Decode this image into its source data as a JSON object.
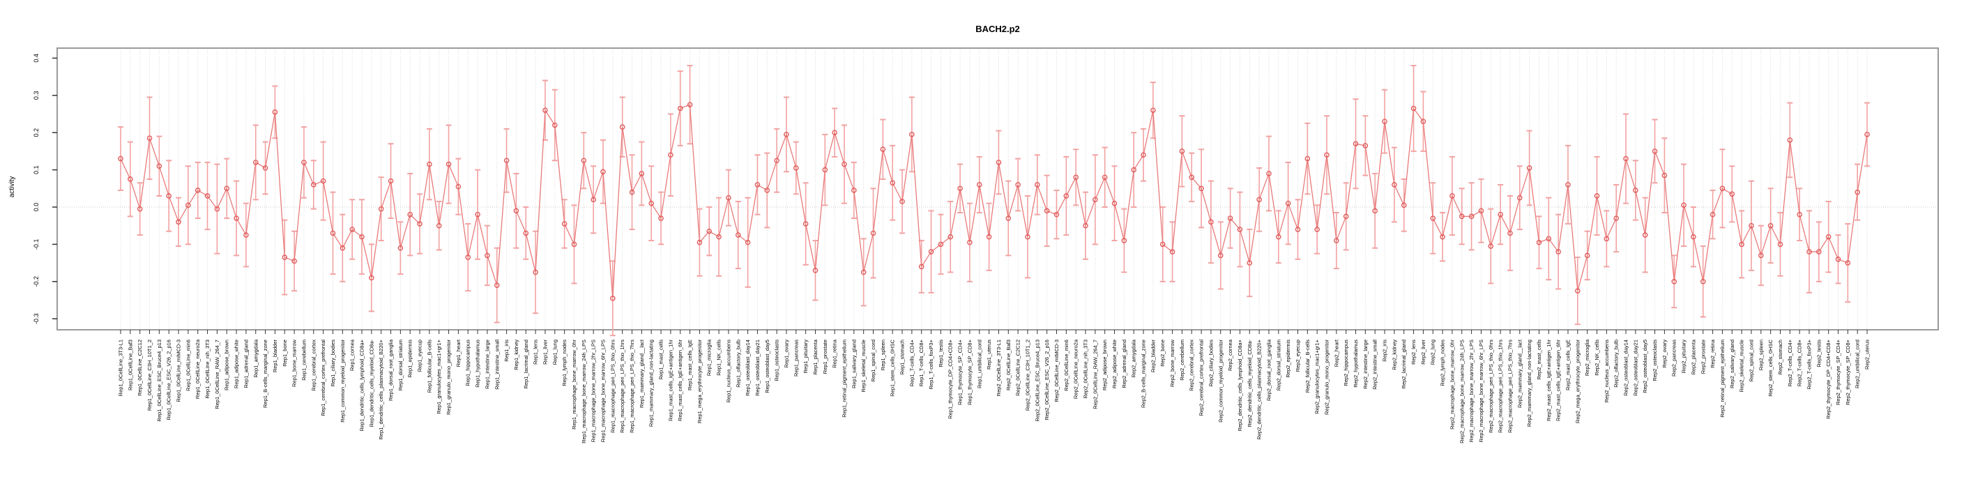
{
  "chart_data": {
    "type": "line",
    "title": "BACH2.p2",
    "ylabel": "activity",
    "xlabel": "",
    "ylim": [
      -0.32,
      0.43
    ],
    "yticks": [
      -0.3,
      -0.2,
      -0.1,
      0.0,
      0.1,
      0.2,
      0.3,
      0.4
    ],
    "grid": "vertical-dotted-per-category, dotted zero line",
    "legend": "none",
    "style": {
      "line_color": "#e87a7a",
      "point_color": "#e05c5c",
      "errorbar_color": "#f2a2a2",
      "grid_color": "#d8d8d8",
      "zero_line_color": "#c8c8c8",
      "box_color": "#9b9b9b",
      "text_color": "#000000",
      "background": "#ffffff",
      "point_style": "open-circle",
      "error_caps": true
    },
    "categories": [
      "Rep1_0CellLine_3T3-L1",
      "Rep1_0CellLine_Baf3",
      "Rep1_0CellLine_C2C12",
      "Rep1_0CellLine_C3H_10T1_2",
      "Rep1_0CellLine_ESC_Bruce4_p13",
      "Rep1_0CellLine_ESC_V26_2_p16",
      "Rep1_0CellLine_mIMCD-3",
      "Rep1_0CellLine_min6",
      "Rep1_0CellLine_neuro2a",
      "Rep1_0CellLine_nih_3T3",
      "Rep1_0CellLine_RAW_264_7",
      "Rep1_adipose_brown",
      "Rep1_adipose_white",
      "Rep1_adrenal_gland",
      "Rep1_amygdala",
      "Rep1_B-cells_marginal_zone",
      "Rep1_bladder",
      "Rep1_bone",
      "Rep1_bone_marrow",
      "Rep1_cerebellum",
      "Rep1_cerebral_cortex",
      "Rep1_cerebral_cortex_prefrontal",
      "Rep1_ciliary_bodies",
      "Rep1_common_myeloid_progenitor",
      "Rep1_cornea",
      "Rep1_dendritic_cells_lymphoid_CD8a+",
      "Rep1_dendritic_cells_myeloid_CD8a-",
      "Rep1_dendritic_cells_plasmacytoid_B220+",
      "Rep1_dorsal_root_ganglia",
      "Rep1_dorsal_striatum",
      "Rep1_epidermis",
      "Rep1_eyecup",
      "Rep1_follicular_B-cells",
      "Rep1_granulocytes_mac1+gr1+",
      "Rep1_granulo_mono_progenitor",
      "Rep1_heart",
      "Rep1_hippocampus",
      "Rep1_hypothalamus",
      "Rep1_intestine_large",
      "Rep1_intestine_small",
      "Rep1_iris",
      "Rep1_kidney",
      "Rep1_lacrimal_gland",
      "Rep1_lens",
      "Rep1_liver",
      "Rep1_lung",
      "Rep1_lymph_nodes",
      "Rep1_macrophage_bone_marrow_0hr",
      "Rep1_macrophage_bone_marrow_24h_LPS",
      "Rep1_macrophage_bone_marrow_2hr_LPS",
      "Rep1_macrophage_bone_marrow_6hr_LPS",
      "Rep1_macrophage_peri_LPS_thio_0hrs",
      "Rep1_macrophage_peri_LPS_thio_1hrs",
      "Rep1_macrophage_peri_LPS_thio_7hrs",
      "Rep1_mammary_gland__lact",
      "Rep1_mammary_gland_non-lactating",
      "Rep1_mast_cells",
      "Rep1_mast_cells_IgE+antigen_1hr",
      "Rep1_mast_cells_IgE+antigen_6hr",
      "Rep1_mast_cells_IgE",
      "Rep1_mega_erythrocyte_progenitor",
      "Rep1_microglia",
      "Rep1_NK_cells",
      "Rep1_nucleus_accumbens",
      "Rep1_olfactory_bulb",
      "Rep1_osteoblast_day14",
      "Rep1_osteoblast_day21",
      "Rep1_osteoblast_day5",
      "Rep1_osteoclasts",
      "Rep1_ovary",
      "Rep1_pancreas",
      "Rep1_pituitary",
      "Rep1_placenta",
      "Rep1_prostate",
      "Rep1_retina",
      "Rep1_retinal_pigment_epithelium",
      "Rep1_salivary_gland",
      "Rep1_skeletal_muscle",
      "Rep1_spinal_cord",
      "Rep1_spleen",
      "Rep1_stem_cells_0HSC",
      "Rep1_stomach",
      "Rep1_T-cells_CD4+",
      "Rep1_T-cells_CD8+",
      "Rep1_T-cells_foxP3+",
      "Rep1_testis",
      "Rep1_thymocyte_DP_CD4+CD8+",
      "Rep1_thymocyte_SP_CD4+",
      "Rep1_thymocyte_SP_CD8+",
      "Rep1_umbilical_cord",
      "Rep1_uterus",
      "Rep2_0CellLine_3T3-L1",
      "Rep2_0CellLine_Baf3",
      "Rep2_0CellLine_C2C12",
      "Rep2_0CellLine_C3H_10T1_2",
      "Rep2_0CellLine_ESC_Bruce4_p13",
      "Rep2_0CellLine_ESC_V26_2_p16",
      "Rep2_0CellLine_mIMCD-3",
      "Rep2_0CellLine_min6",
      "Rep2_0CellLine_neuro2a",
      "Rep2_0CellLine_nih_3T3",
      "Rep2_0CellLine_RAW_264_7",
      "Rep2_adipose_brown",
      "Rep2_adipose_white",
      "Rep2_adrenal_gland",
      "Rep2_amygdala",
      "Rep2_B-cells_marginal_zone",
      "Rep2_bladder",
      "Rep2_bone",
      "Rep2_bone_marrow",
      "Rep2_cerebellum",
      "Rep2_cerebral_cortex",
      "Rep2_cerebral_cortex_prefrontal",
      "Rep2_ciliary_bodies",
      "Rep2_common_myeloid_progenitor",
      "Rep2_cornea",
      "Rep2_dendritic_cells_lymphoid_CD8a+",
      "Rep2_dendritic_cells_myeloid_CD8a-",
      "Rep2_dendritic_cells_plasmacytoid_B220+",
      "Rep2_dorsal_root_ganglia",
      "Rep2_dorsal_striatum",
      "Rep2_epidermis",
      "Rep2_eyecup",
      "Rep2_follicular_B-cells",
      "Rep2_granulocytes_mac1+gr1+",
      "Rep2_granulo_mono_progenitor",
      "Rep2_heart",
      "Rep2_hippocampus",
      "Rep2_hypothalamus",
      "Rep2_intestine_large",
      "Rep2_intestine_small",
      "Rep2_iris",
      "Rep2_kidney",
      "Rep2_lacrimal_gland",
      "Rep2_lens",
      "Rep2_liver",
      "Rep2_lung",
      "Rep2_lymph_nodes",
      "Rep2_macrophage_bone_marrow_0hr",
      "Rep2_macrophage_bone_marrow_24h_LPS",
      "Rep2_macrophage_bone_marrow_2hr_LPS",
      "Rep2_macrophage_bone_marrow_6hr_LPS",
      "Rep2_macrophage_peri_LPS_thio_0hrs",
      "Rep2_macrophage_peri_LPS_thio_1hrs",
      "Rep2_macrophage_peri_LPS_thio_7hrs",
      "Rep2_mammary_gland__lact",
      "Rep2_mammary_gland_non-lactating",
      "Rep2_mast_cells",
      "Rep2_mast_cells_IgE+antigen_1hr",
      "Rep2_mast_cells_IgE+antigen_6hr",
      "Rep2_mast_cells_IgE",
      "Rep2_mega_erythrocyte_progenitor",
      "Rep2_microglia",
      "Rep2_NK_cells",
      "Rep2_nucleus_accumbens",
      "Rep2_olfactory_bulb",
      "Rep2_osteoblast_day14",
      "Rep2_osteoblast_day21",
      "Rep2_osteoblast_day5",
      "Rep2_osteoclasts",
      "Rep2_ovary",
      "Rep2_pancreas",
      "Rep2_pituitary",
      "Rep2_placenta",
      "Rep2_prostate",
      "Rep2_retina",
      "Rep2_retinal_pigment_epithelium",
      "Rep2_salivary_gland",
      "Rep2_skeletal_muscle",
      "Rep2_spinal_cord",
      "Rep2_spleen",
      "Rep2_stem_cells_0HSC",
      "Rep2_stomach",
      "Rep2_T-cells_CD4+",
      "Rep2_T-cells_CD8+",
      "Rep2_T-cells_foxP3+",
      "Rep2_testis",
      "Rep2_thymocyte_DP_CD4+CD8+",
      "Rep2_thymocyte_SP_CD4+",
      "Rep2_thymocyte_SP_CD8+",
      "Rep2_umbilical_cord",
      "Rep2_uterus"
    ],
    "values": [
      0.13,
      0.075,
      -0.005,
      0.185,
      0.11,
      0.03,
      -0.04,
      0.005,
      0.045,
      0.03,
      -0.005,
      0.05,
      -0.03,
      -0.075,
      0.12,
      0.105,
      0.255,
      -0.135,
      -0.145,
      0.12,
      0.06,
      0.07,
      -0.07,
      -0.11,
      -0.06,
      -0.08,
      -0.19,
      -0.005,
      0.07,
      -0.11,
      -0.02,
      -0.045,
      0.115,
      -0.05,
      0.115,
      0.055,
      -0.135,
      -0.02,
      -0.13,
      -0.21,
      0.125,
      -0.01,
      -0.07,
      -0.175,
      0.26,
      0.22,
      -0.045,
      -0.1,
      0.125,
      0.02,
      0.095,
      -0.245,
      0.215,
      0.04,
      0.09,
      0.01,
      -0.03,
      0.14,
      0.265,
      0.275,
      -0.095,
      -0.065,
      -0.08,
      0.025,
      -0.075,
      -0.095,
      0.06,
      0.045,
      0.125,
      0.195,
      0.105,
      -0.045,
      -0.17,
      0.1,
      0.2,
      0.115,
      0.045,
      -0.175,
      -0.07,
      0.155,
      0.065,
      0.015,
      0.195,
      -0.16,
      -0.12,
      -0.1,
      -0.08,
      0.05,
      -0.095,
      0.06,
      -0.08,
      0.12,
      -0.03,
      0.06,
      -0.08,
      0.06,
      -0.01,
      -0.02,
      0.03,
      0.08,
      -0.05,
      0.02,
      0.08,
      0.01,
      -0.09,
      0.1,
      0.14,
      0.26,
      -0.1,
      -0.12,
      0.15,
      0.08,
      0.05,
      -0.04,
      -0.13,
      -0.03,
      -0.06,
      -0.15,
      0.02,
      0.09,
      -0.08,
      0.01,
      -0.06,
      0.13,
      -0.06,
      0.14,
      -0.09,
      -0.025,
      0.17,
      0.165,
      -0.01,
      0.23,
      0.06,
      0.005,
      0.265,
      0.23,
      -0.03,
      -0.08,
      0.03,
      -0.025,
      -0.025,
      -0.01,
      -0.105,
      -0.02,
      -0.07,
      0.025,
      0.105,
      -0.095,
      -0.085,
      -0.12,
      0.06,
      -0.225,
      -0.13,
      0.03,
      -0.085,
      -0.03,
      0.13,
      0.045,
      -0.075,
      0.15,
      0.085,
      -0.2,
      0.005,
      -0.08,
      -0.2,
      -0.02,
      0.05,
      0.035,
      -0.1,
      -0.05,
      -0.13,
      -0.05,
      -0.1,
      0.18,
      -0.02,
      -0.12,
      -0.12,
      -0.08,
      -0.14,
      -0.15,
      0.04,
      0.195
    ],
    "errors": [
      0.085,
      0.1,
      0.07,
      0.11,
      0.08,
      0.095,
      0.065,
      0.105,
      0.075,
      0.09,
      0.12,
      0.08,
      0.1,
      0.085,
      0.1,
      0.07,
      0.07,
      0.1,
      0.08,
      0.095,
      0.065,
      0.105,
      0.11,
      0.09,
      0.08,
      0.1,
      0.09,
      0.085,
      0.1,
      0.07,
      0.11,
      0.08,
      0.095,
      0.065,
      0.105,
      0.075,
      0.09,
      0.12,
      0.08,
      0.1,
      0.085,
      0.1,
      0.07,
      0.11,
      0.08,
      0.095,
      0.065,
      0.105,
      0.075,
      0.09,
      0.085,
      0.1,
      0.08,
      0.1,
      0.085,
      0.1,
      0.07,
      0.11,
      0.1,
      0.105,
      0.09,
      0.065,
      0.105,
      0.075,
      0.09,
      0.12,
      0.08,
      0.1,
      0.085,
      0.1,
      0.07,
      0.11,
      0.08,
      0.095,
      0.065,
      0.105,
      0.075,
      0.09,
      0.12,
      0.08,
      0.1,
      0.085,
      0.1,
      0.07,
      0.11,
      0.08,
      0.095,
      0.065,
      0.105,
      0.075,
      0.09,
      0.085,
      0.1,
      0.07,
      0.11,
      0.08,
      0.095,
      0.065,
      0.105,
      0.075,
      0.09,
      0.12,
      0.08,
      0.1,
      0.085,
      0.1,
      0.07,
      0.075,
      0.1,
      0.08,
      0.095,
      0.065,
      0.105,
      0.11,
      0.09,
      0.08,
      0.1,
      0.09,
      0.085,
      0.1,
      0.07,
      0.11,
      0.08,
      0.095,
      0.065,
      0.105,
      0.075,
      0.09,
      0.12,
      0.08,
      0.1,
      0.085,
      0.1,
      0.07,
      0.115,
      0.08,
      0.095,
      0.065,
      0.105,
      0.075,
      0.09,
      0.085,
      0.1,
      0.08,
      0.1,
      0.085,
      0.1,
      0.07,
      0.11,
      0.1,
      0.105,
      0.09,
      0.065,
      0.105,
      0.075,
      0.09,
      0.12,
      0.08,
      0.1,
      0.085,
      0.1,
      0.07,
      0.11,
      0.08,
      0.095,
      0.065,
      0.105,
      0.075,
      0.09,
      0.12,
      0.08,
      0.1,
      0.085,
      0.1,
      0.07,
      0.11,
      0.08,
      0.095,
      0.065,
      0.105,
      0.075,
      0.085
    ]
  }
}
